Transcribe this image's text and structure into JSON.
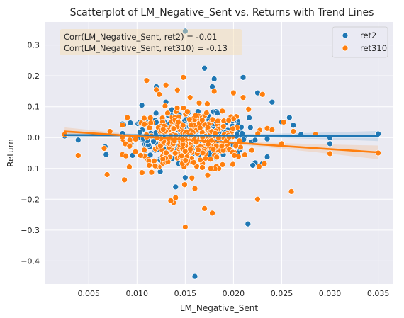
{
  "chart_data": {
    "type": "scatter",
    "title": "Scatterplot of LM_Negative_Sent vs. Returns with Trend Lines",
    "xlabel": "LM_Negative_Sent",
    "ylabel": "Return",
    "xlim": [
      0.0005,
      0.0365
    ],
    "ylim": [
      -0.475,
      0.375
    ],
    "xticks": [
      0.005,
      0.01,
      0.015,
      0.02,
      0.025,
      0.03,
      0.035
    ],
    "xtick_labels": [
      "0.005",
      "0.010",
      "0.015",
      "0.020",
      "0.025",
      "0.030",
      "0.035"
    ],
    "yticks": [
      -0.4,
      -0.3,
      -0.2,
      -0.1,
      0.0,
      0.1,
      0.2,
      0.3
    ],
    "ytick_labels": [
      "−0.4",
      "−0.3",
      "−0.2",
      "−0.1",
      "0.0",
      "0.1",
      "0.2",
      "0.3"
    ],
    "grid": true,
    "legend_position": "top-right",
    "annotations": [
      "Corr(LM_Negative_Sent, ret2) = -0.01",
      "Corr(LM_Negative_Sent, ret310) = -0.13"
    ],
    "series": [
      {
        "name": "ret2",
        "color": "#1f77b4",
        "trend": {
          "x": [
            0.0025,
            0.035
          ],
          "y": [
            0.008,
            0.005
          ]
        },
        "outliers": [
          [
            0.0025,
            0.005
          ],
          [
            0.0039,
            -0.008
          ],
          [
            0.0067,
            -0.03
          ],
          [
            0.0068,
            -0.055
          ],
          [
            0.0105,
            0.105
          ],
          [
            0.012,
            0.165
          ],
          [
            0.013,
            0.115
          ],
          [
            0.014,
            -0.16
          ],
          [
            0.015,
            0.345
          ],
          [
            0.0155,
            0.13
          ],
          [
            0.016,
            -0.45
          ],
          [
            0.017,
            0.225
          ],
          [
            0.018,
            0.19
          ],
          [
            0.0178,
            0.165
          ],
          [
            0.021,
            0.195
          ],
          [
            0.0215,
            -0.28
          ],
          [
            0.0225,
            0.145
          ],
          [
            0.024,
            0.115
          ],
          [
            0.025,
            0.05
          ],
          [
            0.0258,
            0.065
          ],
          [
            0.0262,
            0.04
          ],
          [
            0.027,
            0.01
          ],
          [
            0.03,
            0.0
          ],
          [
            0.03,
            -0.02
          ],
          [
            0.035,
            0.012
          ],
          [
            0.023,
            -0.085
          ],
          [
            0.022,
            -0.09
          ],
          [
            0.015,
            -0.13
          ]
        ]
      },
      {
        "name": "ret310",
        "color": "#ff7f0e",
        "trend": {
          "x": [
            0.0025,
            0.035
          ],
          "y": [
            0.02,
            -0.048
          ]
        },
        "outliers": [
          [
            0.0025,
            0.01
          ],
          [
            0.0039,
            -0.058
          ],
          [
            0.0066,
            -0.035
          ],
          [
            0.0069,
            -0.12
          ],
          [
            0.0072,
            0.02
          ],
          [
            0.009,
            0.065
          ],
          [
            0.0092,
            -0.095
          ],
          [
            0.011,
            0.185
          ],
          [
            0.012,
            0.155
          ],
          [
            0.0123,
            0.14
          ],
          [
            0.013,
            0.17
          ],
          [
            0.0135,
            -0.205
          ],
          [
            0.014,
            -0.195
          ],
          [
            0.0148,
            0.195
          ],
          [
            0.015,
            -0.29
          ],
          [
            0.0155,
            0.13
          ],
          [
            0.016,
            -0.165
          ],
          [
            0.017,
            -0.23
          ],
          [
            0.0178,
            -0.245
          ],
          [
            0.018,
            0.15
          ],
          [
            0.02,
            0.145
          ],
          [
            0.021,
            0.13
          ],
          [
            0.0225,
            -0.2
          ],
          [
            0.023,
            0.14
          ],
          [
            0.0232,
            -0.085
          ],
          [
            0.024,
            0.025
          ],
          [
            0.025,
            -0.02
          ],
          [
            0.0252,
            0.05
          ],
          [
            0.026,
            -0.175
          ],
          [
            0.0262,
            0.02
          ],
          [
            0.0285,
            0.01
          ],
          [
            0.03,
            -0.052
          ],
          [
            0.035,
            -0.05
          ]
        ]
      }
    ]
  }
}
